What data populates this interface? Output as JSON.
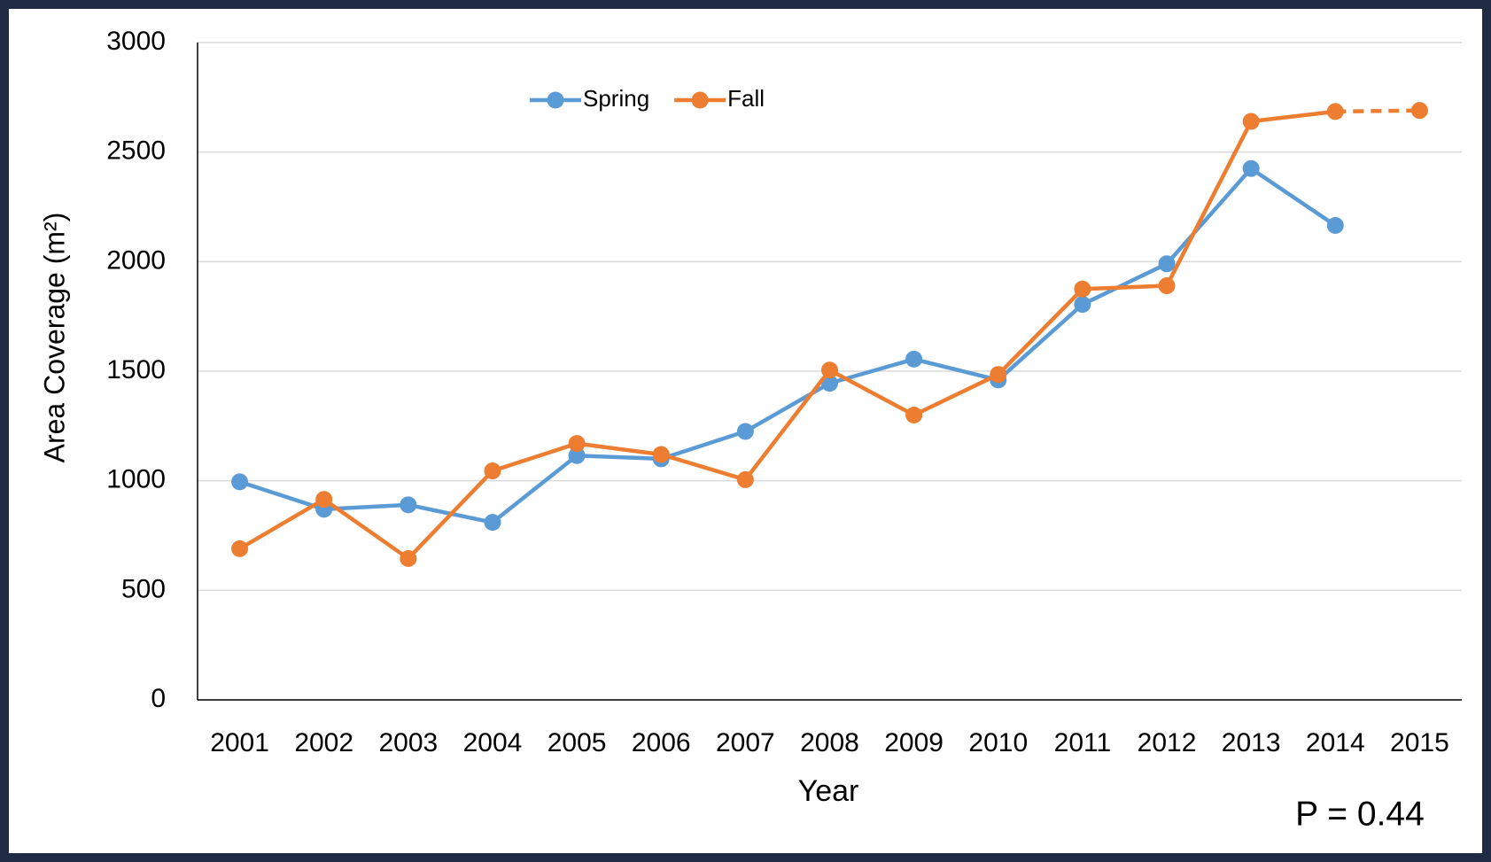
{
  "chart_data": {
    "type": "line",
    "categories": [
      "2001",
      "2002",
      "2003",
      "2004",
      "2005",
      "2006",
      "2007",
      "2008",
      "2009",
      "2010",
      "2011",
      "2012",
      "2013",
      "2014",
      "2015"
    ],
    "series": [
      {
        "name": "Spring",
        "color": "#5b9bd5",
        "values": [
          995,
          870,
          890,
          810,
          1115,
          1100,
          1225,
          1445,
          1555,
          1460,
          1805,
          1990,
          2425,
          2165,
          null
        ]
      },
      {
        "name": "Fall",
        "color": "#ed7d31",
        "values": [
          690,
          915,
          645,
          1045,
          1170,
          1120,
          1005,
          1505,
          1300,
          1485,
          1875,
          1890,
          2640,
          2685,
          2690
        ],
        "dashed_from": 13
      }
    ],
    "xlabel": "Year",
    "ylabel": "Area Coverage (m²)",
    "ylim": [
      0,
      3000
    ],
    "yticks": [
      0,
      500,
      1000,
      1500,
      2000,
      2500,
      3000
    ],
    "grid": true,
    "legend": "top",
    "annotation": "P = 0.44"
  }
}
